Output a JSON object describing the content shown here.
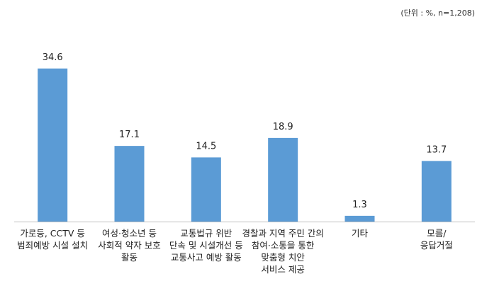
{
  "chart_data": {
    "type": "bar",
    "unit_note": "(단위 : %, n=1,208)",
    "categories": [
      [
        "가로등, CCTV 등",
        "범죄예방 시설 설치"
      ],
      [
        "여성·청소년 등",
        "사회적 약자 보호",
        "활동"
      ],
      [
        "교통법규 위반",
        "단속 및 시설개선 등",
        "교통사고 예방 활동"
      ],
      [
        "경찰과 지역 주민 간의",
        "참여·소통을 통한",
        "맞춤형 치안",
        "서비스 제공"
      ],
      [
        "기타"
      ],
      [
        "모름/",
        "응답거절"
      ]
    ],
    "values": [
      34.6,
      17.1,
      14.5,
      18.9,
      1.3,
      13.7
    ],
    "value_labels": [
      "34.6",
      "17.1",
      "14.5",
      "18.9",
      "1.3",
      "13.7"
    ],
    "ylim": [
      0,
      40
    ],
    "bar_color": "#5b9bd5",
    "axis_color": "#bfbfbf",
    "grid": false,
    "legend": "none"
  }
}
